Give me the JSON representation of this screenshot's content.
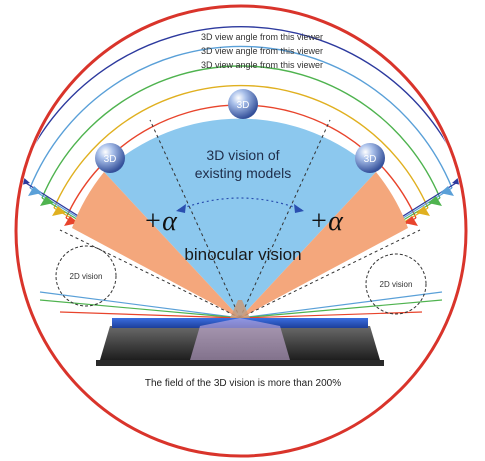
{
  "diagram": {
    "arc_labels": [
      "3D view angle from this viewer",
      "3D view angle from this viewer",
      "3D view angle from this viewer"
    ],
    "sphere_labels": {
      "top": "3D",
      "left": "3D",
      "right": "3D"
    },
    "center_text_line1": "3D vision of",
    "center_text_line2": "existing models",
    "alpha_left": "+α",
    "alpha_right": "+α",
    "binocular_label": "binocular vision",
    "side_circle_left": "2D vision",
    "side_circle_right": "2D vision",
    "caption": "The field of the 3D vision is more than 200%",
    "colors": {
      "border": "#d9342b",
      "blue_sector": "#8cc8ee",
      "orange_sector": "#f4a77c",
      "sphere": "#5a82c8",
      "display_blue": "#2a5fcf",
      "arc_lines": [
        "#2d3a9e",
        "#5aa0d8",
        "#4fb34f",
        "#e0b020",
        "#e8442c"
      ]
    }
  }
}
